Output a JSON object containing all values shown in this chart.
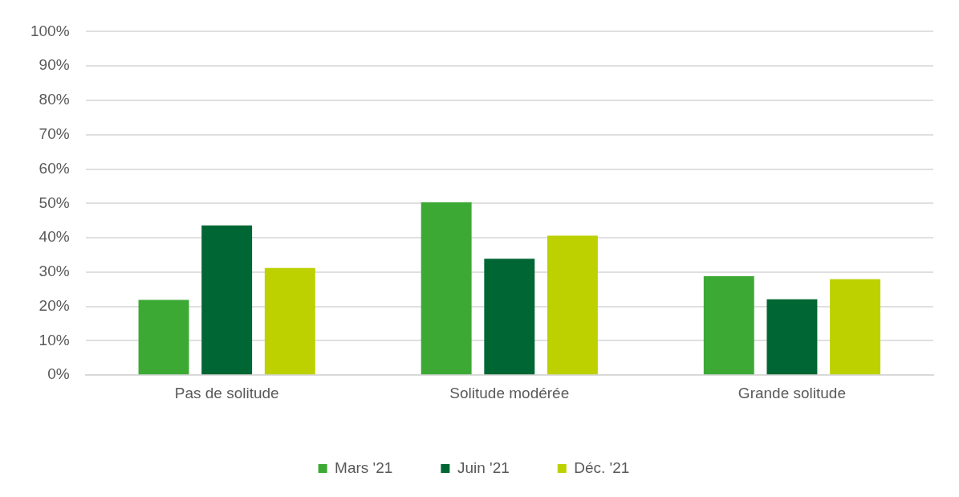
{
  "chart_data": {
    "type": "bar",
    "categories": [
      "Pas de solitude",
      "Solitude modérée",
      "Grande solitude"
    ],
    "series": [
      {
        "name": "Mars '21",
        "color": "#3ca935",
        "values": [
          21.9,
          50.3,
          28.8
        ]
      },
      {
        "name": "Juin '21",
        "color": "#006633",
        "values": [
          43.6,
          33.9,
          22.1
        ]
      },
      {
        "name": "Déc. '21",
        "color": "#bdd000",
        "values": [
          31.2,
          40.6,
          27.9
        ]
      }
    ],
    "ylim": [
      0,
      100
    ],
    "yticks": [
      {
        "value": 0,
        "label": "0%"
      },
      {
        "value": 10,
        "label": "10%"
      },
      {
        "value": 20,
        "label": "20%"
      },
      {
        "value": 30,
        "label": "30%"
      },
      {
        "value": 40,
        "label": "40%"
      },
      {
        "value": 50,
        "label": "50%"
      },
      {
        "value": 60,
        "label": "60%"
      },
      {
        "value": 70,
        "label": "70%"
      },
      {
        "value": 80,
        "label": "80%"
      },
      {
        "value": 90,
        "label": "90%"
      },
      {
        "value": 100,
        "label": "100%"
      }
    ],
    "grid": "y",
    "legend": "bottom"
  }
}
